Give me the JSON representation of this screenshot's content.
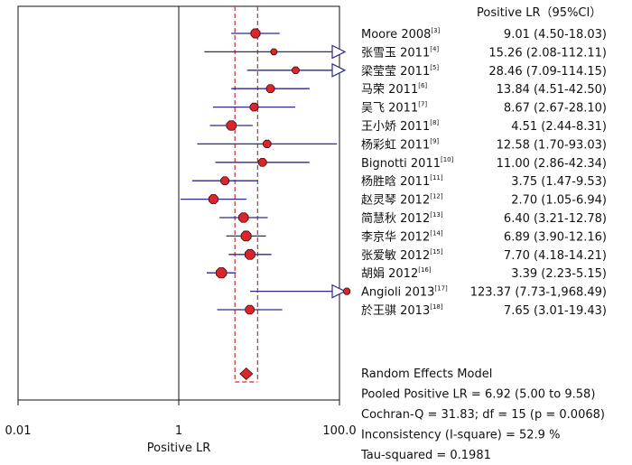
{
  "chart_data": {
    "type": "forest",
    "column_header": "Positive LR（95%CI）",
    "xlabel": "Positive LR",
    "x_scale": "log",
    "xlim": [
      0.01,
      100.0
    ],
    "x_tick_labels": [
      "0.01",
      "1",
      "100.0"
    ],
    "x_ticks": [
      0.01,
      1,
      100
    ],
    "null_line": 1,
    "pooled_band": [
      5.0,
      9.58
    ],
    "studies": [
      {
        "name": "Moore 2008",
        "ref": "[3]",
        "value": 9.01,
        "lower": 4.5,
        "upper": 18.03,
        "label": "9.01 (4.50-18.03)",
        "weight": 0.95
      },
      {
        "name": "张雪玉 2011",
        "ref": "[4]",
        "value": 15.26,
        "lower": 2.08,
        "upper": 112.11,
        "label": "15.26 (2.08-112.11)",
        "weight": 0.55
      },
      {
        "name": "梁莹莹 2011",
        "ref": "[5]",
        "value": 28.46,
        "lower": 7.09,
        "upper": 114.15,
        "label": "28.46 (7.09-114.15)",
        "weight": 0.65
      },
      {
        "name": "马荣 2011",
        "ref": "[6]",
        "value": 13.84,
        "lower": 4.51,
        "upper": 42.5,
        "label": "13.84 (4.51-42.50)",
        "weight": 0.8
      },
      {
        "name": "吴飞 2011",
        "ref": "[7]",
        "value": 8.67,
        "lower": 2.67,
        "upper": 28.1,
        "label": "8.67 (2.67-28.10)",
        "weight": 0.8
      },
      {
        "name": "王小娇 2011",
        "ref": "[8]",
        "value": 4.51,
        "lower": 2.44,
        "upper": 8.31,
        "label": "4.51 (2.44-8.31)",
        "weight": 1.0
      },
      {
        "name": "杨彩虹 2011",
        "ref": "[9]",
        "value": 12.58,
        "lower": 1.7,
        "upper": 93.03,
        "label": "12.58 (1.70-93.03)",
        "weight": 0.75
      },
      {
        "name": "Bignotti 2011",
        "ref": "[10]",
        "value": 11.0,
        "lower": 2.86,
        "upper": 42.34,
        "label": "11.00 (2.86-42.34)",
        "weight": 0.8
      },
      {
        "name": "杨胜晗 2011",
        "ref": "[11]",
        "value": 3.75,
        "lower": 1.47,
        "upper": 9.53,
        "label": "3.75 (1.47-9.53)",
        "weight": 0.8
      },
      {
        "name": "赵灵琴 2012",
        "ref": "[12]",
        "value": 2.7,
        "lower": 1.05,
        "upper": 6.94,
        "label": "2.70 (1.05-6.94)",
        "weight": 0.95
      },
      {
        "name": "简慧秋 2012",
        "ref": "[13]",
        "value": 6.4,
        "lower": 3.21,
        "upper": 12.78,
        "label": "6.40 (3.21-12.78)",
        "weight": 1.0
      },
      {
        "name": "李京华 2012",
        "ref": "[14]",
        "value": 6.89,
        "lower": 3.9,
        "upper": 12.16,
        "label": "6.89 (3.90-12.16)",
        "weight": 1.05
      },
      {
        "name": "张爱敏 2012",
        "ref": "[15]",
        "value": 7.7,
        "lower": 4.18,
        "upper": 14.21,
        "label": "7.70 (4.18-14.21)",
        "weight": 1.05
      },
      {
        "name": "胡娟 2012",
        "ref": "[16]",
        "value": 3.39,
        "lower": 2.23,
        "upper": 5.15,
        "label": "3.39 (2.23-5.15)",
        "weight": 1.1
      },
      {
        "name": "Angioli 2013",
        "ref": "[17]",
        "value": 123.37,
        "lower": 7.73,
        "upper": 1968.49,
        "label": "123.37 (7.73-1,968.49)",
        "weight": 0.6
      },
      {
        "name": "於王骐 2013",
        "ref": "[18]",
        "value": 7.65,
        "lower": 3.01,
        "upper": 19.43,
        "label": "7.65 (3.01-19.43)",
        "weight": 0.9
      }
    ],
    "pooled": {
      "value": 6.92,
      "lower": 5.0,
      "upper": 9.58
    },
    "summary": {
      "model": "Random Effects Model",
      "pooled": "Pooled Positive LR = 6.92 (5.00 to 9.58)",
      "cochran": "Cochran-Q = 31.83; df = 15 (p = 0.0068)",
      "inconsistency": "Inconsistency (I-square) = 52.9 %",
      "tau": "Tau-squared = 0.1981"
    },
    "colors": {
      "marker_fill": "#d9262c",
      "marker_stroke": "#3a0a0a",
      "ci_line": "#2b2a8c",
      "pooled_band": "#d9262c",
      "axis": "#111111"
    }
  }
}
